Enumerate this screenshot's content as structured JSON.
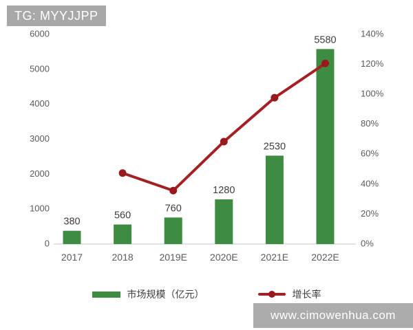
{
  "header": {
    "badge": "TG: MYYJJPP"
  },
  "chart_data": {
    "type": "bar+line",
    "categories": [
      "2017",
      "2018",
      "2019E",
      "2020E",
      "2021E",
      "2022E"
    ],
    "series": [
      {
        "name": "市场规模（亿元）",
        "type": "bar",
        "axis": "left",
        "values": [
          380,
          560,
          760,
          1280,
          2530,
          5580
        ],
        "color": "#3e8c42"
      },
      {
        "name": "增长率",
        "type": "line",
        "axis": "right",
        "values": [
          null,
          47.4,
          35.7,
          68.4,
          97.7,
          120.6
        ],
        "color": "#a32125",
        "marker_color": "#98191e"
      }
    ],
    "bar_labels": [
      "380",
      "560",
      "760",
      "1280",
      "2530",
      "5580"
    ],
    "left_axis": {
      "min": 0,
      "max": 6000,
      "ticks": [
        "0",
        "1000",
        "2000",
        "3000",
        "4000",
        "5000",
        "6000"
      ]
    },
    "right_axis": {
      "min": 0,
      "max": 140,
      "ticks": [
        "0%",
        "20%",
        "40%",
        "60%",
        "80%",
        "100%",
        "120%",
        "140%"
      ]
    },
    "title": "",
    "xlabel": "",
    "ylabel": "",
    "grid": false,
    "legend_position": "bottom"
  },
  "legend": {
    "items": [
      {
        "label": "市场规模（亿元）",
        "swatch": "bar",
        "color": "#3e8c42"
      },
      {
        "label": "增长率",
        "swatch": "line",
        "color": "#a32125"
      }
    ]
  },
  "watermark": {
    "text": "www.cimowenhua.com"
  },
  "colors": {
    "bar_green": "#3e8c42",
    "line_red": "#a32125",
    "marker_red": "#98191e",
    "badge_gray": "#a8a8a8",
    "watermark_gray": "#acacac",
    "axis_text": "#5a5a5a",
    "label_text": "#3d3d3d",
    "baseline": "#d9d9d9",
    "background": "#ffffff"
  }
}
